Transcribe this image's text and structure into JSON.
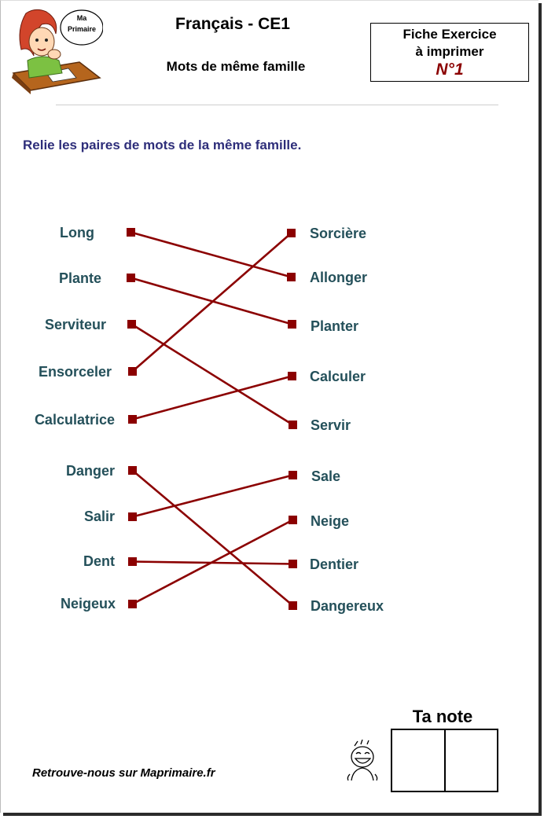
{
  "header": {
    "logo_text_line1": "Ma",
    "logo_text_line2": "Primaire",
    "title": "Français - CE1",
    "subtitle": "Mots de même famille",
    "fiche_line1": "Fiche Exercice",
    "fiche_line2": "à imprimer",
    "fiche_number": "N°1"
  },
  "instruction": "Relie les paires de mots de la même famille.",
  "left_words": [
    "Long",
    "Plante",
    "Serviteur",
    "Ensorceler",
    "Calculatrice",
    "Danger",
    "Salir",
    "Dent",
    "Neigeux"
  ],
  "right_words": [
    "Sorcière",
    "Allonger",
    "Planter",
    "Calculer",
    "Servir",
    "Sale",
    "Neige",
    "Dentier",
    "Dangereux"
  ],
  "links": [
    {
      "from": "Long",
      "to": "Allonger"
    },
    {
      "from": "Plante",
      "to": "Planter"
    },
    {
      "from": "Serviteur",
      "to": "Servir"
    },
    {
      "from": "Ensorceler",
      "to": "Sorcière"
    },
    {
      "from": "Calculatrice",
      "to": "Calculer"
    },
    {
      "from": "Danger",
      "to": "Dangereux"
    },
    {
      "from": "Salir",
      "to": "Sale"
    },
    {
      "from": "Dent",
      "to": "Dentier"
    },
    {
      "from": "Neigeux",
      "to": "Neige"
    }
  ],
  "colors": {
    "link": "#8b0000",
    "word": "#24505a",
    "instruction": "#2e2e7a",
    "fiche_number": "#8b0000"
  },
  "footer": {
    "site_text": "Retrouve-nous sur Maprimaire.fr",
    "note_label": "Ta note"
  }
}
